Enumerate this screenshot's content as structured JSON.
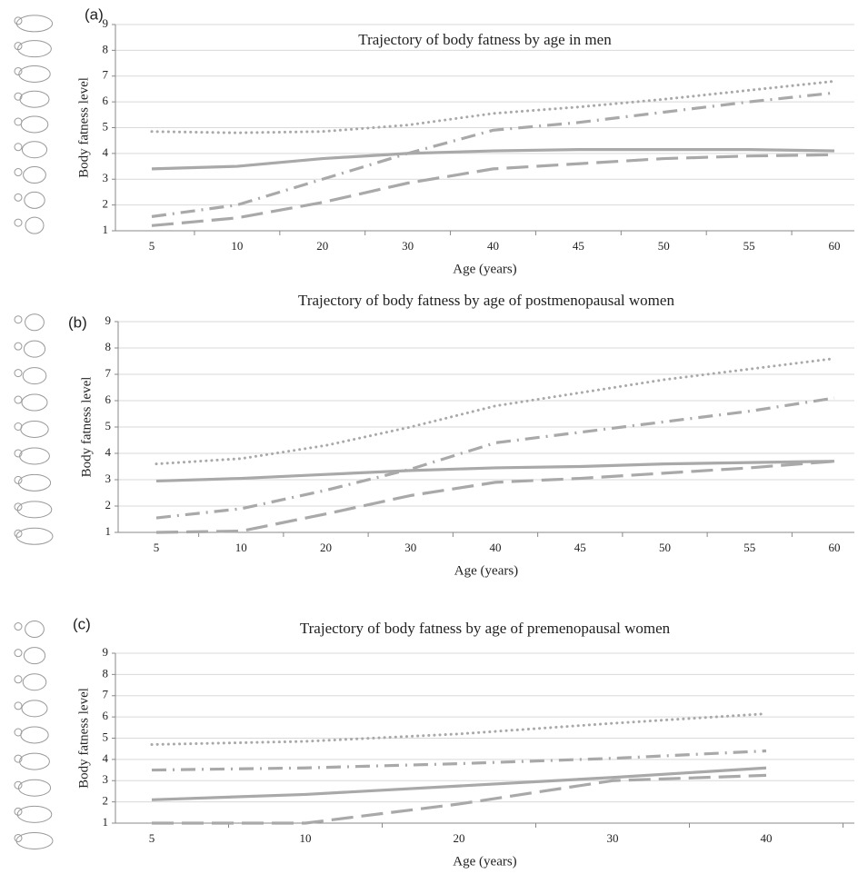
{
  "chart_data": [
    {
      "type": "line",
      "panel": "(a)",
      "title": "Trajectory of body fatness by age in men",
      "x_label": "Age (years)",
      "y_label": "Body fatness level",
      "categories": [
        "5",
        "10",
        "20",
        "30",
        "40",
        "45",
        "50",
        "55",
        "60"
      ],
      "ylim": [
        1,
        9
      ],
      "yticks": [
        1,
        2,
        3,
        4,
        5,
        6,
        7,
        8,
        9
      ],
      "grid": true,
      "series": [
        {
          "color": "#a9a9a9",
          "dash": "dotted",
          "values": [
            4.85,
            4.8,
            4.85,
            5.1,
            5.55,
            5.8,
            6.1,
            6.45,
            6.8
          ]
        },
        {
          "color": "#a9a9a9",
          "dash": "dashdot",
          "values": [
            1.55,
            2.0,
            3.0,
            4.0,
            4.9,
            5.2,
            5.6,
            6.0,
            6.35
          ]
        },
        {
          "color": "#a9a9a9",
          "dash": "solid",
          "values": [
            3.4,
            3.5,
            3.8,
            4.0,
            4.1,
            4.15,
            4.15,
            4.15,
            4.1
          ]
        },
        {
          "color": "#a9a9a9",
          "dash": "longdash",
          "values": [
            1.2,
            1.5,
            2.1,
            2.85,
            3.4,
            3.6,
            3.8,
            3.9,
            3.95
          ]
        }
      ]
    },
    {
      "type": "line",
      "panel": "(b)",
      "title": "Trajectory of body fatness by age of postmenopausal women",
      "x_label": "Age (years)",
      "y_label": "Body fatness level",
      "categories": [
        "5",
        "10",
        "20",
        "30",
        "40",
        "45",
        "50",
        "55",
        "60"
      ],
      "ylim": [
        1,
        9
      ],
      "yticks": [
        1,
        2,
        3,
        4,
        5,
        6,
        7,
        8,
        9
      ],
      "grid": true,
      "series": [
        {
          "color": "#a9a9a9",
          "dash": "dotted",
          "values": [
            3.6,
            3.8,
            4.3,
            5.0,
            5.8,
            6.3,
            6.8,
            7.2,
            7.6
          ]
        },
        {
          "color": "#a9a9a9",
          "dash": "dashdot",
          "values": [
            1.55,
            1.9,
            2.6,
            3.4,
            4.4,
            4.8,
            5.2,
            5.6,
            6.1
          ]
        },
        {
          "color": "#a9a9a9",
          "dash": "solid",
          "values": [
            2.95,
            3.05,
            3.2,
            3.35,
            3.45,
            3.5,
            3.6,
            3.65,
            3.7
          ]
        },
        {
          "color": "#a9a9a9",
          "dash": "longdash",
          "values": [
            1.0,
            1.05,
            1.7,
            2.4,
            2.9,
            3.05,
            3.25,
            3.45,
            3.7
          ]
        }
      ]
    },
    {
      "type": "line",
      "panel": "(c)",
      "title": "Trajectory of body fatness by age of premenopausal women",
      "x_label": "Age (years)",
      "y_label": "Body fatness level",
      "categories": [
        "5",
        "10",
        "20",
        "30",
        "40"
      ],
      "ylim": [
        1,
        9
      ],
      "yticks": [
        1,
        2,
        3,
        4,
        5,
        6,
        7,
        8,
        9
      ],
      "grid": true,
      "series": [
        {
          "color": "#a9a9a9",
          "dash": "dotted",
          "values": [
            4.7,
            4.85,
            5.2,
            5.7,
            6.15
          ]
        },
        {
          "color": "#a9a9a9",
          "dash": "dashdot",
          "values": [
            3.5,
            3.6,
            3.8,
            4.05,
            4.4
          ]
        },
        {
          "color": "#a9a9a9",
          "dash": "solid",
          "values": [
            2.1,
            2.35,
            2.75,
            3.15,
            3.6
          ]
        },
        {
          "color": "#a9a9a9",
          "dash": "longdash",
          "values": [
            1.0,
            1.0,
            1.9,
            3.0,
            3.25
          ]
        }
      ]
    }
  ]
}
